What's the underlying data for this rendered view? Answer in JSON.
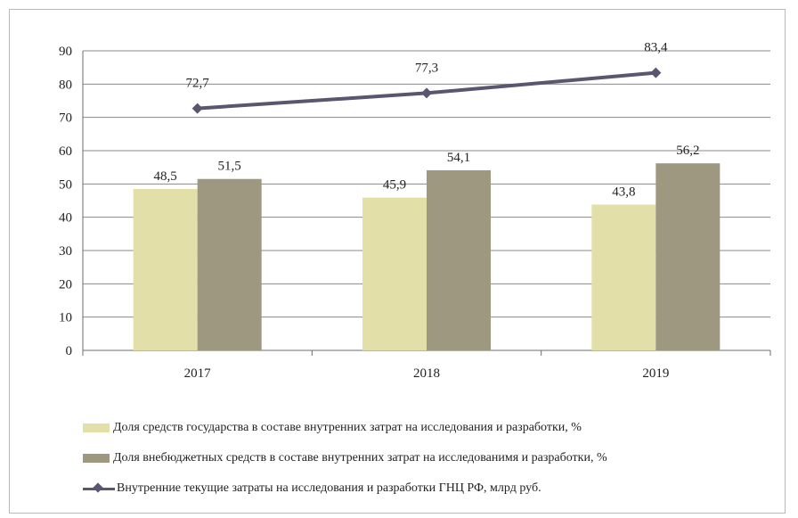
{
  "chart_data": {
    "type": "bar",
    "categories": [
      "2017",
      "2018",
      "2019"
    ],
    "ylim": [
      0,
      90
    ],
    "yticks": [
      "0",
      "10",
      "20",
      "30",
      "40",
      "50",
      "60",
      "70",
      "80",
      "90"
    ],
    "grid": true,
    "legend_position": "bottom",
    "series": [
      {
        "name": "Доля средств государства в составе внутренних затрат на исследования и разработки, %",
        "type": "bar",
        "color": "#e3dfa8",
        "values": [
          48.5,
          45.9,
          43.8
        ],
        "labels": [
          "48,5",
          "45,9",
          "43,8"
        ]
      },
      {
        "name": "Доля внебюджетных средств в составе внутренних затрат на исследованимя и разработки, %",
        "type": "bar",
        "color": "#9e9880",
        "values": [
          51.5,
          54.1,
          56.2
        ],
        "labels": [
          "51,5",
          "54,1",
          "56,2"
        ]
      },
      {
        "name": "Внутренние текущие затраты на исследования и разработки ГНЦ РФ, млрд  руб.",
        "type": "line",
        "color": "#5a5670",
        "values": [
          72.7,
          77.3,
          83.4
        ],
        "labels": [
          "72,7",
          "77,3",
          "83,4"
        ]
      }
    ]
  }
}
